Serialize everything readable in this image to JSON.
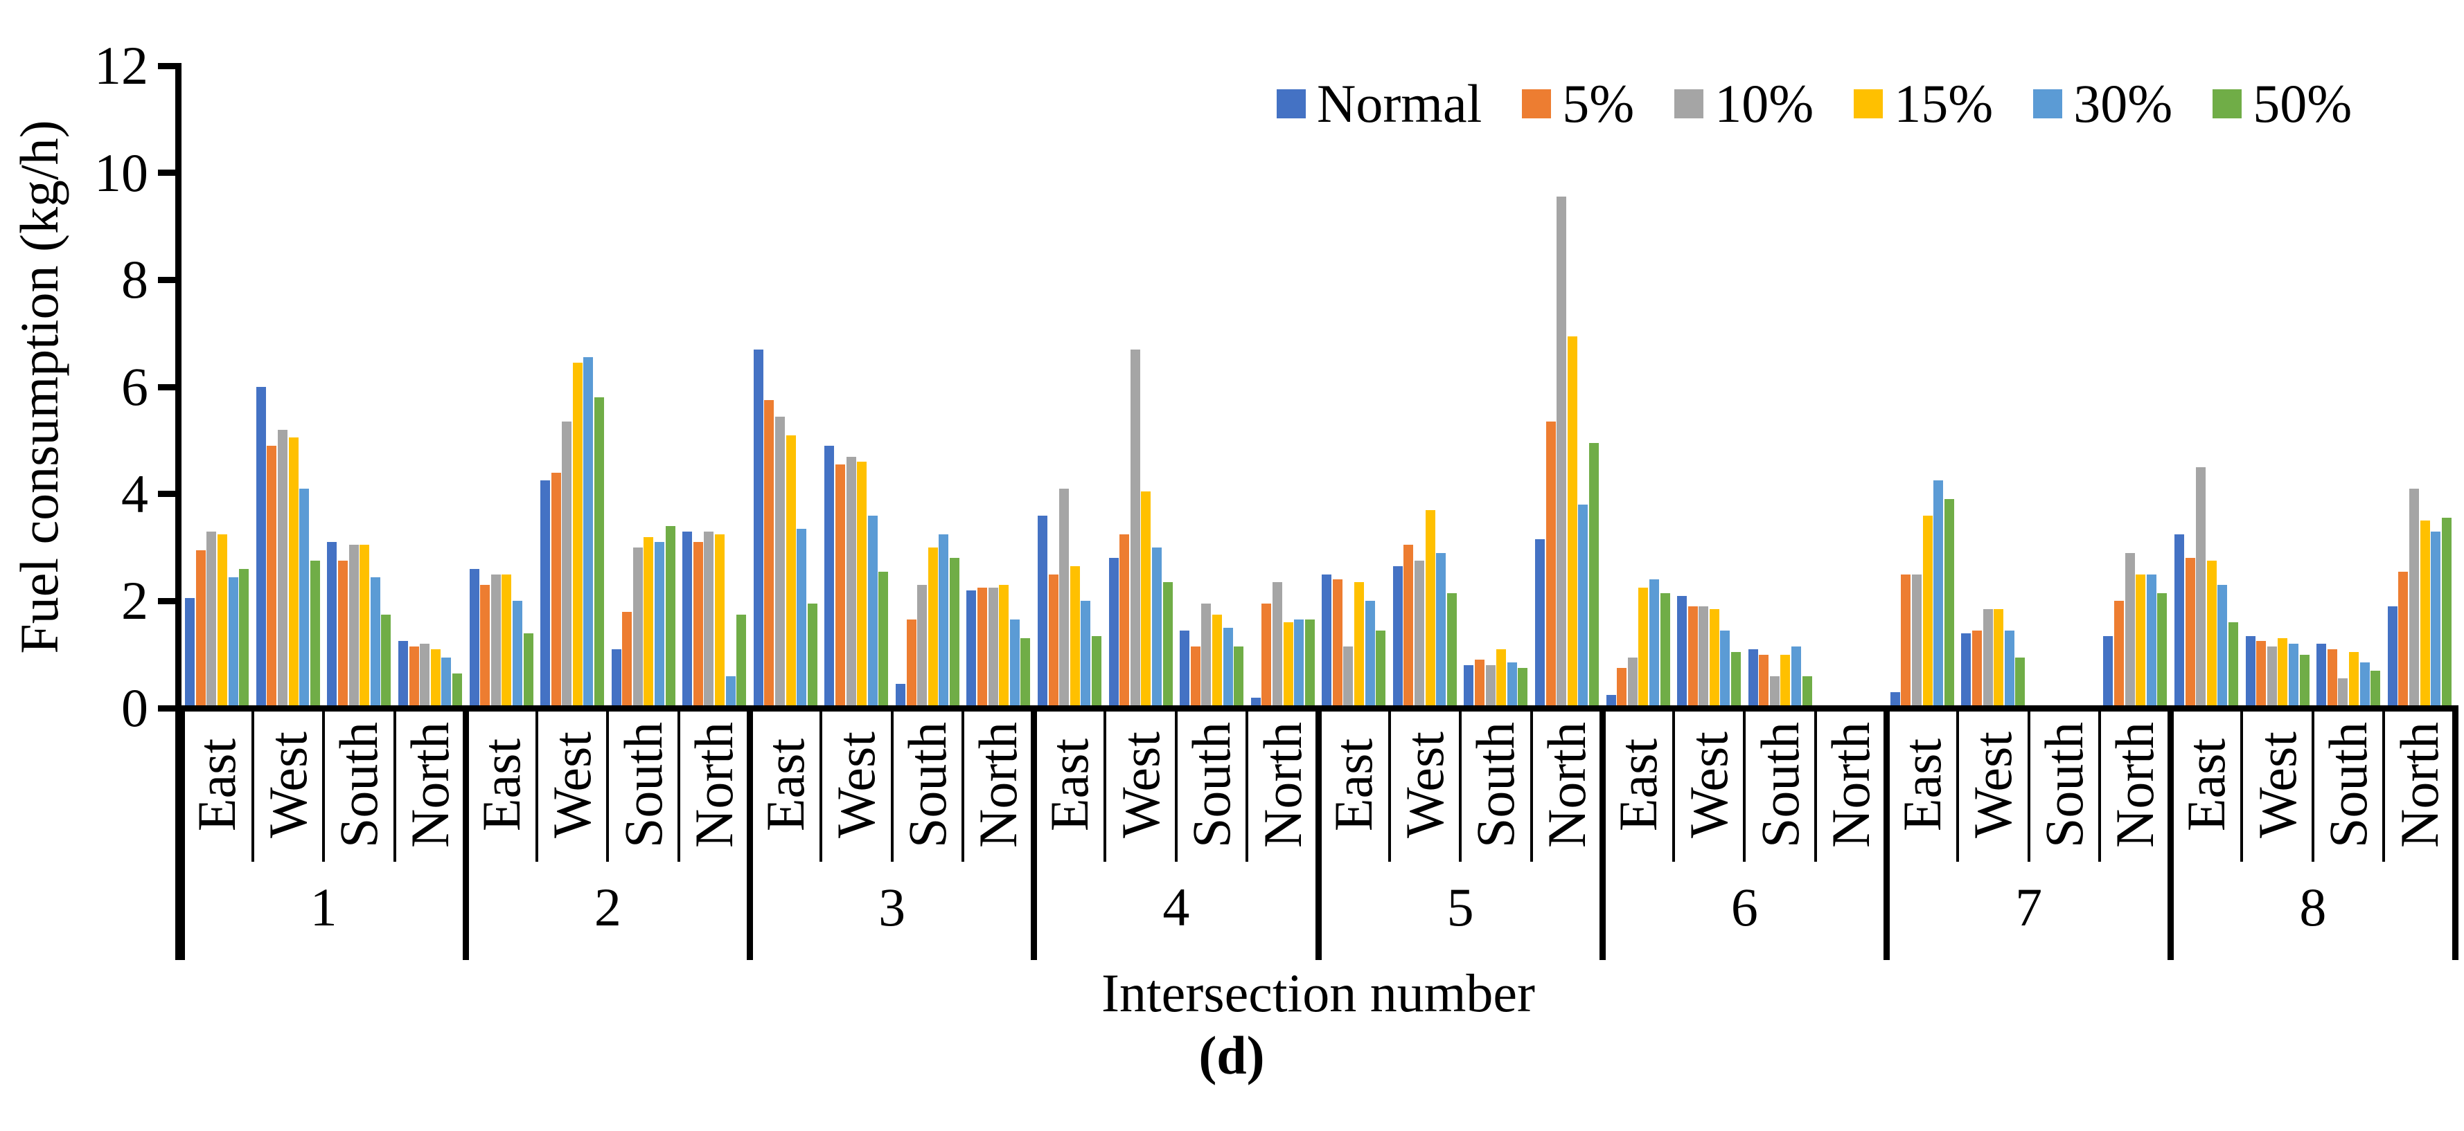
{
  "chart_data": {
    "type": "bar",
    "title": "",
    "xlabel": "Intersection number",
    "ylabel": "Fuel consumption (kg/h)",
    "caption": "(d)",
    "ylim": [
      0,
      12
    ],
    "yticks": [
      0,
      2,
      4,
      6,
      8,
      10,
      12
    ],
    "grid": false,
    "legend_position": "top-right-inside",
    "axis_color": "#000000",
    "background_color": "#ffffff",
    "series": [
      {
        "name": "Normal",
        "color": "#4472C4"
      },
      {
        "name": "5%",
        "color": "#ED7D31"
      },
      {
        "name": "10%",
        "color": "#A5A5A5"
      },
      {
        "name": "15%",
        "color": "#FFC000"
      },
      {
        "name": "30%",
        "color": "#5B9BD5"
      },
      {
        "name": "50%",
        "color": "#70AD47"
      }
    ],
    "directions": [
      "East",
      "West",
      "South",
      "North"
    ],
    "intersections": [
      {
        "label": "1",
        "groups": {
          "East": [
            2.05,
            2.95,
            3.3,
            3.25,
            2.45,
            2.6
          ],
          "West": [
            6.0,
            4.9,
            5.2,
            5.05,
            4.1,
            2.75
          ],
          "South": [
            3.1,
            2.75,
            3.05,
            3.05,
            2.45,
            1.75
          ],
          "North": [
            1.25,
            1.15,
            1.2,
            1.1,
            0.95,
            0.65
          ]
        }
      },
      {
        "label": "2",
        "groups": {
          "East": [
            2.6,
            2.3,
            2.5,
            2.5,
            2.0,
            1.4
          ],
          "West": [
            4.25,
            4.4,
            5.35,
            6.45,
            6.55,
            5.8
          ],
          "South": [
            1.1,
            1.8,
            3.0,
            3.2,
            3.1,
            3.4
          ],
          "North": [
            3.3,
            3.1,
            3.3,
            3.25,
            0.6,
            1.75
          ]
        }
      },
      {
        "label": "3",
        "groups": {
          "East": [
            6.7,
            5.75,
            5.45,
            5.1,
            3.35,
            1.95
          ],
          "West": [
            4.9,
            4.55,
            4.7,
            4.6,
            3.6,
            2.55
          ],
          "South": [
            0.45,
            1.65,
            2.3,
            3.0,
            3.25,
            2.8
          ],
          "North": [
            2.2,
            2.25,
            2.25,
            2.3,
            1.65,
            1.3
          ]
        }
      },
      {
        "label": "4",
        "groups": {
          "East": [
            3.6,
            2.5,
            4.1,
            2.65,
            2.0,
            1.35
          ],
          "West": [
            2.8,
            3.25,
            6.7,
            4.05,
            3.0,
            2.35
          ],
          "South": [
            1.45,
            1.15,
            1.95,
            1.75,
            1.5,
            1.15
          ],
          "North": [
            0.2,
            1.95,
            2.35,
            1.6,
            1.65,
            1.65
          ]
        }
      },
      {
        "label": "5",
        "groups": {
          "East": [
            2.5,
            2.4,
            1.15,
            2.35,
            2.0,
            1.45
          ],
          "West": [
            2.65,
            3.05,
            2.75,
            3.7,
            2.9,
            2.15
          ],
          "South": [
            0.8,
            0.9,
            0.8,
            1.1,
            0.85,
            0.75
          ],
          "North": [
            3.15,
            5.35,
            9.55,
            6.95,
            3.8,
            4.95
          ]
        }
      },
      {
        "label": "6",
        "groups": {
          "East": [
            0.25,
            0.75,
            0.95,
            2.25,
            2.4,
            2.15
          ],
          "West": [
            2.1,
            1.9,
            1.9,
            1.85,
            1.45,
            1.05
          ],
          "South": [
            1.1,
            1.0,
            0.6,
            1.0,
            1.15,
            0.6
          ],
          "North": [
            0,
            0,
            0,
            0,
            0,
            0
          ]
        }
      },
      {
        "label": "7",
        "groups": {
          "East": [
            0.3,
            2.5,
            2.5,
            3.6,
            4.25,
            3.9
          ],
          "West": [
            1.4,
            1.45,
            1.85,
            1.85,
            1.45,
            0.95
          ],
          "South": [
            0,
            0,
            0,
            0,
            0,
            0
          ],
          "North": [
            1.35,
            2.0,
            2.9,
            2.5,
            2.5,
            2.15
          ]
        }
      },
      {
        "label": "8",
        "groups": {
          "East": [
            3.25,
            2.8,
            4.5,
            2.75,
            2.3,
            1.6
          ],
          "West": [
            1.35,
            1.25,
            1.15,
            1.3,
            1.2,
            1.0
          ],
          "South": [
            1.2,
            1.1,
            0.55,
            1.05,
            0.85,
            0.7
          ],
          "North": [
            1.9,
            2.55,
            4.1,
            3.5,
            3.3,
            3.55
          ]
        }
      }
    ]
  }
}
